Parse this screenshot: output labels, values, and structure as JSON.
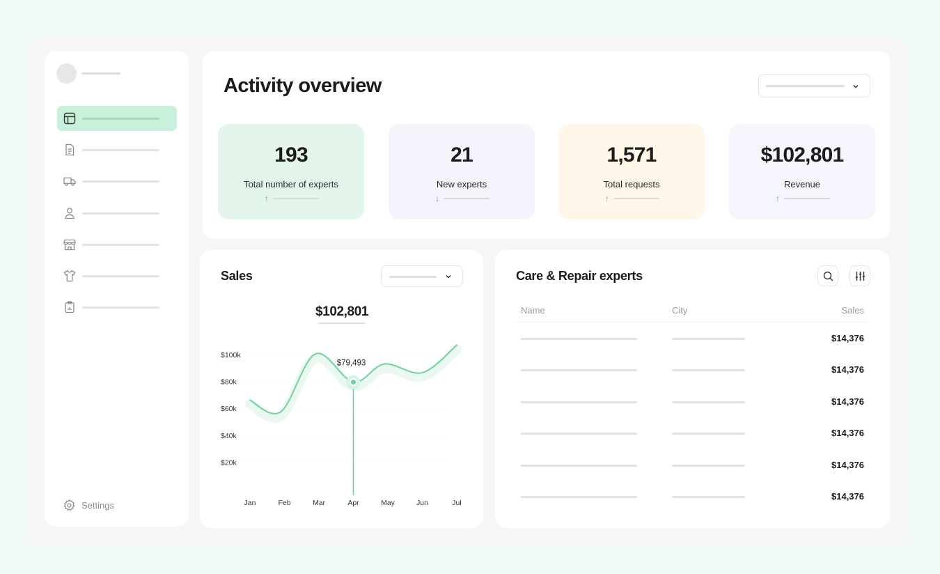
{
  "overview": {
    "title": "Activity overview",
    "stats": [
      {
        "value": "193",
        "label": "Total number of experts",
        "trend": "up",
        "trend_arrow": "↑",
        "bg": "#e4f6ec"
      },
      {
        "value": "21",
        "label": "New experts",
        "trend": "down",
        "trend_arrow": "↓",
        "bg": "#f5f4fd"
      },
      {
        "value": "1,571",
        "label": "Total requests",
        "trend": "up",
        "trend_arrow": "↑",
        "bg": "#fef7ea"
      },
      {
        "value": "$102,801",
        "label": "Revenue",
        "trend": "up",
        "trend_arrow": "↑",
        "bg": "#f5f6fd"
      }
    ]
  },
  "sidebar": {
    "items": [
      {
        "icon": "layout-icon",
        "active": true
      },
      {
        "icon": "document-icon",
        "active": false
      },
      {
        "icon": "truck-icon",
        "active": false
      },
      {
        "icon": "user-icon",
        "active": false
      },
      {
        "icon": "store-icon",
        "active": false
      },
      {
        "icon": "shirt-icon",
        "active": false
      },
      {
        "icon": "clipboard-icon",
        "active": false
      }
    ],
    "settings_label": "Settings"
  },
  "sales": {
    "title": "Sales",
    "total": "$102,801",
    "tooltip": "$79,493"
  },
  "chart_data": {
    "type": "line",
    "title": "Sales",
    "x": [
      "Jan",
      "Feb",
      "Mar",
      "Apr",
      "May",
      "Jun",
      "Jul"
    ],
    "y_ticks": [
      "$100k",
      "$80k",
      "$60k",
      "$40k",
      "$20k"
    ],
    "ylim": [
      0,
      100000
    ],
    "series": [
      {
        "points": [
          {
            "x": 0.0,
            "y": 66000
          },
          {
            "x": 0.9,
            "y": 57500
          },
          {
            "x": 1.9,
            "y": 100500
          },
          {
            "x": 3.0,
            "y": 79493
          },
          {
            "x": 3.9,
            "y": 93000
          },
          {
            "x": 5.0,
            "y": 86500
          },
          {
            "x": 6.0,
            "y": 107000
          }
        ]
      }
    ],
    "highlight": {
      "category": "Apr",
      "value": 79493,
      "label": "$79,493"
    },
    "accent": "#6fd39b",
    "grid": false
  },
  "experts": {
    "title": "Care & Repair experts",
    "columns": {
      "name": "Name",
      "city": "City",
      "sales": "Sales"
    },
    "rows": [
      {
        "sales": "$14,376"
      },
      {
        "sales": "$14,376"
      },
      {
        "sales": "$14,376"
      },
      {
        "sales": "$14,376"
      },
      {
        "sales": "$14,376"
      },
      {
        "sales": "$14,376"
      }
    ]
  },
  "colors": {
    "accent_green": "#6fd39b",
    "active_nav": "#c9f0da",
    "trend_up": "#3bb878",
    "trend_down": "#e04848",
    "page_bg": "#f1faf7"
  }
}
